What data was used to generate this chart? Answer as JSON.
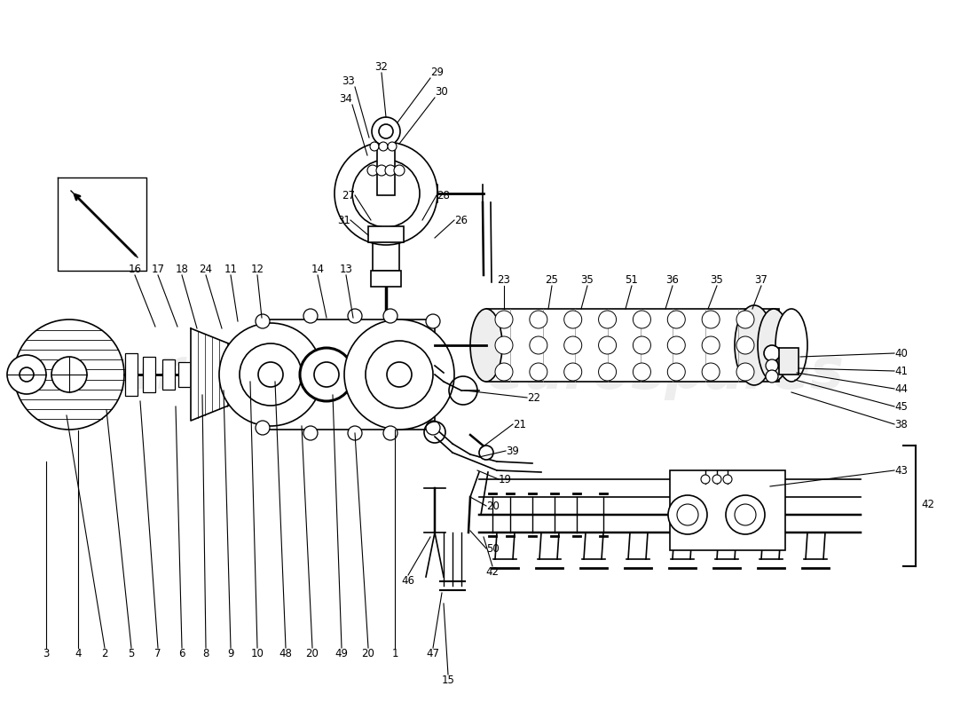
{
  "figsize": [
    11.0,
    8.0
  ],
  "dpi": 100,
  "bg": "#ffffff",
  "wm_color": "#c8c8c8",
  "wm_alpha": 0.3,
  "line_color": "#000000",
  "label_fontsize": 8.5,
  "wm_fontsize": 46
}
